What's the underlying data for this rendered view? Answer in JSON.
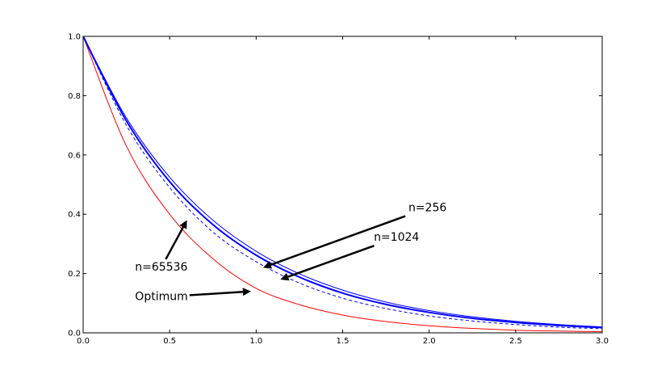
{
  "chart_data": {
    "type": "line",
    "title": "",
    "xlabel": "",
    "ylabel": "",
    "xlim": [
      0.0,
      3.0
    ],
    "ylim": [
      0.0,
      1.0
    ],
    "grid": false,
    "x_ticks": [
      "0.0",
      "0.5",
      "1.0",
      "1.5",
      "2.0",
      "2.5",
      "3.0"
    ],
    "y_ticks": [
      "0.0",
      "0.2",
      "0.4",
      "0.6",
      "0.8",
      "1.0"
    ],
    "series": [
      {
        "color": "#ff0000",
        "style": "solid",
        "x": [
          0.0,
          0.25,
          0.5,
          0.75,
          1.0,
          1.25,
          1.5,
          1.75,
          2.0,
          2.25,
          2.5,
          2.75,
          3.0
        ],
        "y": [
          1.0,
          0.63,
          0.4,
          0.25,
          0.15,
          0.095,
          0.06,
          0.038,
          0.024,
          0.015,
          0.009,
          0.006,
          0.004
        ]
      },
      {
        "color": "#0000ff",
        "style": "dashed",
        "x": [
          0.0,
          0.25,
          0.5,
          0.75,
          1.0,
          1.25,
          1.5,
          1.75,
          2.0,
          2.25,
          2.5,
          2.75,
          3.0
        ],
        "y": [
          1.0,
          0.7,
          0.49,
          0.34,
          0.24,
          0.168,
          0.117,
          0.082,
          0.057,
          0.04,
          0.028,
          0.019,
          0.014
        ]
      },
      {
        "color": "#0000ff",
        "style": "solid",
        "width": 2.0,
        "x": [
          0.0,
          0.25,
          0.5,
          0.75,
          1.0,
          1.25,
          1.5,
          1.75,
          2.0,
          2.25,
          2.5,
          2.75,
          3.0
        ],
        "y": [
          1.0,
          0.715,
          0.51,
          0.365,
          0.262,
          0.188,
          0.134,
          0.096,
          0.069,
          0.049,
          0.035,
          0.025,
          0.018
        ]
      },
      {
        "color": "#0000ff",
        "style": "solid",
        "width": 1.0,
        "x": [
          0.0,
          0.25,
          0.5,
          0.75,
          1.0,
          1.25,
          1.5,
          1.75,
          2.0,
          2.25,
          2.5,
          2.75,
          3.0
        ],
        "y": [
          1.0,
          0.725,
          0.525,
          0.38,
          0.275,
          0.199,
          0.144,
          0.104,
          0.075,
          0.054,
          0.039,
          0.028,
          0.02
        ]
      }
    ],
    "annotations": [
      {
        "text": "n=256",
        "text_at": [
          1.88,
          0.41
        ],
        "arrow_to": [
          1.04,
          0.22
        ]
      },
      {
        "text": "n=1024",
        "text_at": [
          1.68,
          0.31
        ],
        "arrow_to": [
          1.14,
          0.18
        ]
      },
      {
        "text": "n=65536",
        "text_at": [
          0.3,
          0.21
        ],
        "arrow_to": [
          0.6,
          0.38
        ]
      },
      {
        "text": "Optimum",
        "text_at": [
          0.3,
          0.11
        ],
        "arrow_to": [
          0.97,
          0.14
        ]
      }
    ]
  }
}
